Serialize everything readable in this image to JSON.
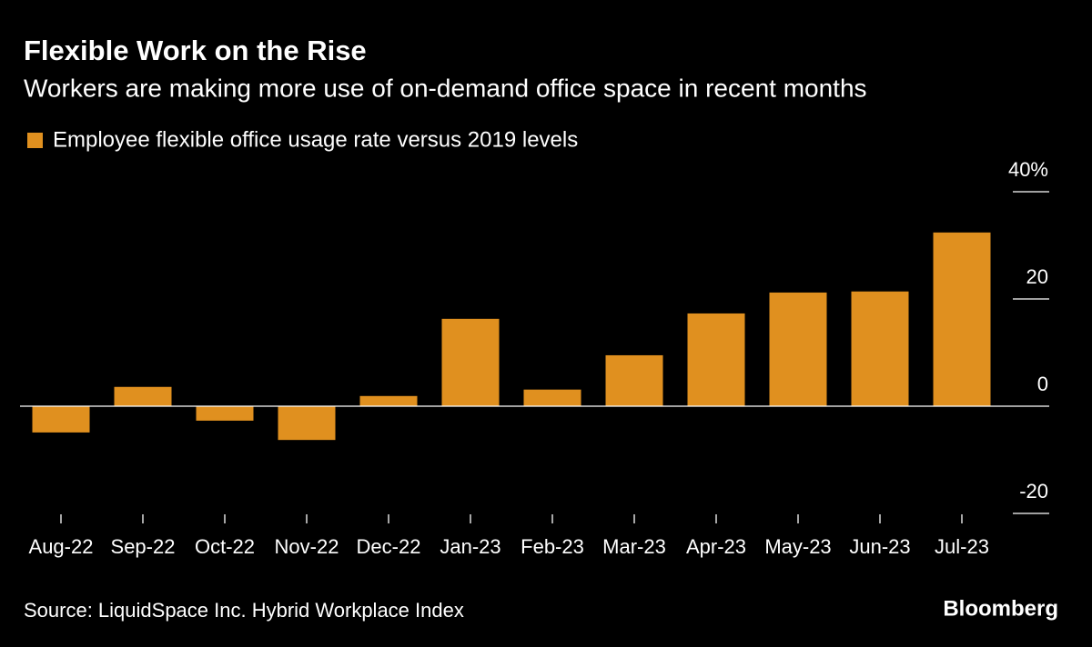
{
  "chart_data": {
    "type": "bar",
    "title": "Flexible Work on the Rise",
    "subtitle": "Workers are making more use of on-demand office space in recent months",
    "categories": [
      "Aug-22",
      "Sep-22",
      "Oct-22",
      "Nov-22",
      "Dec-22",
      "Jan-23",
      "Feb-23",
      "Mar-23",
      "Apr-23",
      "May-23",
      "Jun-23",
      "Jul-23"
    ],
    "series": [
      {
        "name": "Employee flexible office usage rate versus 2019 levels",
        "color": "#e0901f",
        "values": [
          -4.9,
          3.6,
          -2.7,
          -6.3,
          1.9,
          16.3,
          3.1,
          9.5,
          17.3,
          21.2,
          21.4,
          32.4
        ]
      }
    ],
    "ylim": [
      -20,
      40
    ],
    "yticks": [
      {
        "value": 40,
        "label": "40%"
      },
      20,
      0,
      -20
    ],
    "y_axis_side": "right",
    "legend": "top-left",
    "source": "Source: LiquidSpace Inc. Hybrid Workplace Index",
    "brand": "Bloomberg"
  }
}
